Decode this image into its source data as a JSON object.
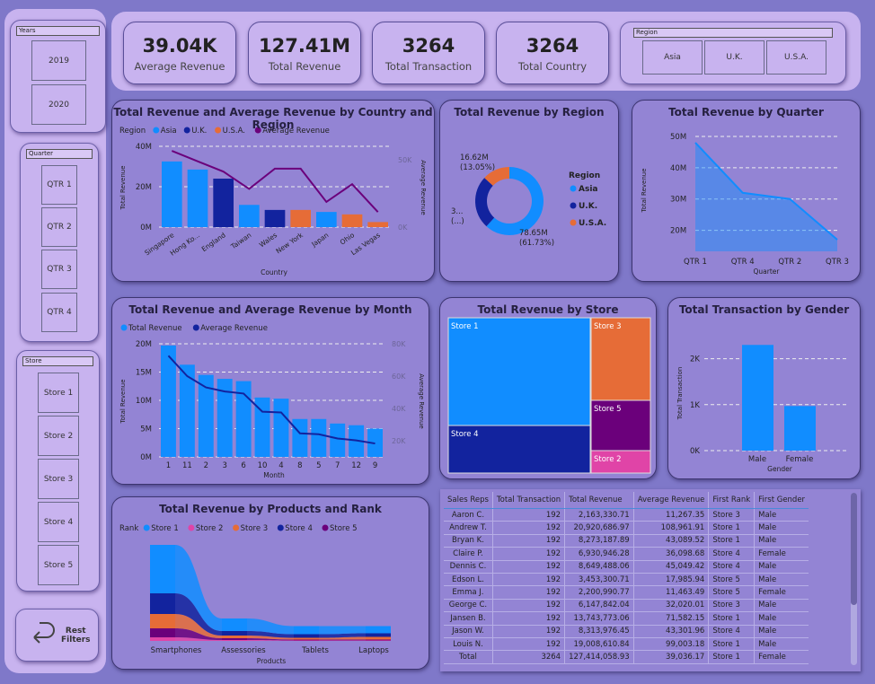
{
  "kpis": [
    {
      "value": "39.04K",
      "label": "Average Revenue"
    },
    {
      "value": "127.41M",
      "label": "Total Revenue"
    },
    {
      "value": "3264",
      "label": "Total Transaction"
    },
    {
      "value": "3264",
      "label": "Total Country"
    }
  ],
  "region_slicer": {
    "title": "Region",
    "options": [
      "Asia",
      "U.K.",
      "U.S.A."
    ]
  },
  "years_slicer": {
    "title": "Years",
    "options": [
      "2019",
      "2020"
    ]
  },
  "quarter_slicer": {
    "title": "Quarter",
    "options": [
      "QTR 1",
      "QTR 2",
      "QTR 3",
      "QTR 4"
    ]
  },
  "store_slicer": {
    "title": "Store",
    "options": [
      "Store 1",
      "Store 2",
      "Store 3",
      "Store 4",
      "Store 5"
    ]
  },
  "reset": {
    "label1": "Rest",
    "label2": "Filters"
  },
  "colors": {
    "asia": "#118dff",
    "uk": "#12239e",
    "usa": "#e66c37",
    "avg_line": "#6b007b",
    "store1": "#118dff",
    "store2": "#e044a7",
    "store3": "#e66c37",
    "store4": "#12239e",
    "store5": "#6b007b"
  },
  "chart_data": [
    {
      "type": "bar",
      "title": "Total Revenue and Average Revenue by Country and Region",
      "legend_title": "Region",
      "legend": [
        "Asia",
        "U.K.",
        "U.S.A.",
        "Average Revenue"
      ],
      "xlabel": "Country",
      "ylabel": "Total Revenue",
      "y2label": "Average Revenue",
      "yticks": [
        "0M",
        "20M",
        "40M"
      ],
      "y2ticks": [
        "0K",
        "50K"
      ],
      "ylim": [
        0,
        40000000
      ],
      "y2lim": [
        0,
        60000
      ],
      "categories": [
        "Singapore",
        "Hong Ko...",
        "England",
        "Taiwan",
        "Wales",
        "New York",
        "Japan",
        "Ohio",
        "Las Vegas"
      ],
      "region": [
        "Asia",
        "Asia",
        "U.K.",
        "Asia",
        "U.K.",
        "U.S.A.",
        "Asia",
        "U.S.A.",
        "U.S.A."
      ],
      "values": [
        32500000,
        28500000,
        24000000,
        11000000,
        8500000,
        8500000,
        7500000,
        6300000,
        2500000
      ],
      "avg": [
        56600,
        48900,
        41200,
        28400,
        43400,
        43400,
        18700,
        31900,
        11200
      ]
    },
    {
      "type": "pie",
      "title": "Total Revenue by Region",
      "legend_title": "Region",
      "categories": [
        "Asia",
        "U.K.",
        "U.S.A."
      ],
      "values": [
        78.65,
        32.14,
        16.62
      ],
      "labels": [
        "78.65M\n(61.73%)",
        "3...\n(...)",
        "16.62M\n(13.05%)"
      ]
    },
    {
      "type": "area",
      "title": "Total Revenue by Quarter",
      "categories": [
        "QTR 1",
        "QTR 4",
        "QTR 2",
        "QTR 3"
      ],
      "values": [
        48000000,
        32000000,
        30000000,
        17000000
      ],
      "xlabel": "Quarter",
      "ylabel": "Total Revenue",
      "yticks": [
        "20M",
        "30M",
        "40M",
        "50M"
      ],
      "ylim": [
        15000000,
        50000000
      ]
    },
    {
      "type": "bar",
      "title": "Total Revenue and Average Revenue by Month",
      "legend": [
        "Total Revenue",
        "Average Revenue"
      ],
      "xlabel": "Month",
      "ylabel": "Total Revenue",
      "y2label": "Average Revenue",
      "yticks": [
        "0M",
        "5M",
        "10M",
        "15M",
        "20M"
      ],
      "y2ticks": [
        "20K",
        "40K",
        "60K",
        "80K"
      ],
      "ylim": [
        0,
        20000000
      ],
      "y2lim": [
        10000,
        80000
      ],
      "categories": [
        "1",
        "11",
        "2",
        "3",
        "6",
        "10",
        "4",
        "8",
        "5",
        "7",
        "12",
        "9"
      ],
      "values": [
        19700000,
        16300000,
        14500000,
        13800000,
        13400000,
        10500000,
        10300000,
        6700000,
        6700000,
        5900000,
        5600000,
        5000000
      ],
      "avg": [
        72600,
        60000,
        53000,
        50500,
        49200,
        38000,
        37500,
        24600,
        24000,
        21400,
        20200,
        18300
      ]
    },
    {
      "type": "treemap",
      "title": "Total Revenue by Store",
      "categories": [
        "Store 1",
        "Store 4",
        "Store 3",
        "Store 5",
        "Store 2"
      ]
    },
    {
      "type": "bar",
      "title": "Total Transaction by Gender",
      "categories": [
        "Male",
        "Female"
      ],
      "values": [
        2300,
        970
      ],
      "xlabel": "Gender",
      "ylabel": "Total Transaction",
      "yticks": [
        "0K",
        "1K",
        "2K"
      ],
      "ylim": [
        0,
        2500
      ]
    },
    {
      "type": "area",
      "title": "Total Revenue by Products and Rank",
      "legend_title": "Rank",
      "xlabel": "Products",
      "categories": [
        "Smartphones",
        "Assessories",
        "Tablets",
        "Laptops"
      ],
      "series": [
        {
          "name": "Store 1",
          "values": [
            54,
            14,
            9,
            8
          ]
        },
        {
          "name": "Store 2",
          "values": [
            4,
            1,
            0.5,
            0.5
          ]
        },
        {
          "name": "Store 3",
          "values": [
            16,
            3,
            2,
            3
          ]
        },
        {
          "name": "Store 4",
          "values": [
            23,
            5,
            4,
            4
          ]
        },
        {
          "name": "Store 5",
          "values": [
            10,
            2,
            1,
            1
          ]
        }
      ]
    }
  ],
  "table": {
    "columns": [
      "Sales Reps",
      "Total Transaction",
      "Total Revenue",
      "Average Revenue",
      "First Rank",
      "First Gender"
    ],
    "rows": [
      [
        "Aaron C.",
        "192",
        "2,163,330.71",
        "11,267.35",
        "Store 3",
        "Male"
      ],
      [
        "Andrew T.",
        "192",
        "20,920,686.97",
        "108,961.91",
        "Store 1",
        "Male"
      ],
      [
        "Bryan K.",
        "192",
        "8,273,187.89",
        "43,089.52",
        "Store 1",
        "Male"
      ],
      [
        "Claire P.",
        "192",
        "6,930,946.28",
        "36,098.68",
        "Store 4",
        "Female"
      ],
      [
        "Dennis C.",
        "192",
        "8,649,488.06",
        "45,049.42",
        "Store 4",
        "Male"
      ],
      [
        "Edson L.",
        "192",
        "3,453,300.71",
        "17,985.94",
        "Store 5",
        "Male"
      ],
      [
        "Emma J.",
        "192",
        "2,200,990.77",
        "11,463.49",
        "Store 5",
        "Female"
      ],
      [
        "George C.",
        "192",
        "6,147,842.04",
        "32,020.01",
        "Store 3",
        "Male"
      ],
      [
        "Jansen B.",
        "192",
        "13,743,773.06",
        "71,582.15",
        "Store 1",
        "Male"
      ],
      [
        "Jason W.",
        "192",
        "8,313,976.45",
        "43,301.96",
        "Store 4",
        "Male"
      ],
      [
        "Louis N.",
        "192",
        "19,008,610.84",
        "99,003.18",
        "Store 1",
        "Male"
      ]
    ],
    "total": [
      "Total",
      "3264",
      "127,414,058.93",
      "39,036.17",
      "Store 1",
      "Female"
    ]
  }
}
